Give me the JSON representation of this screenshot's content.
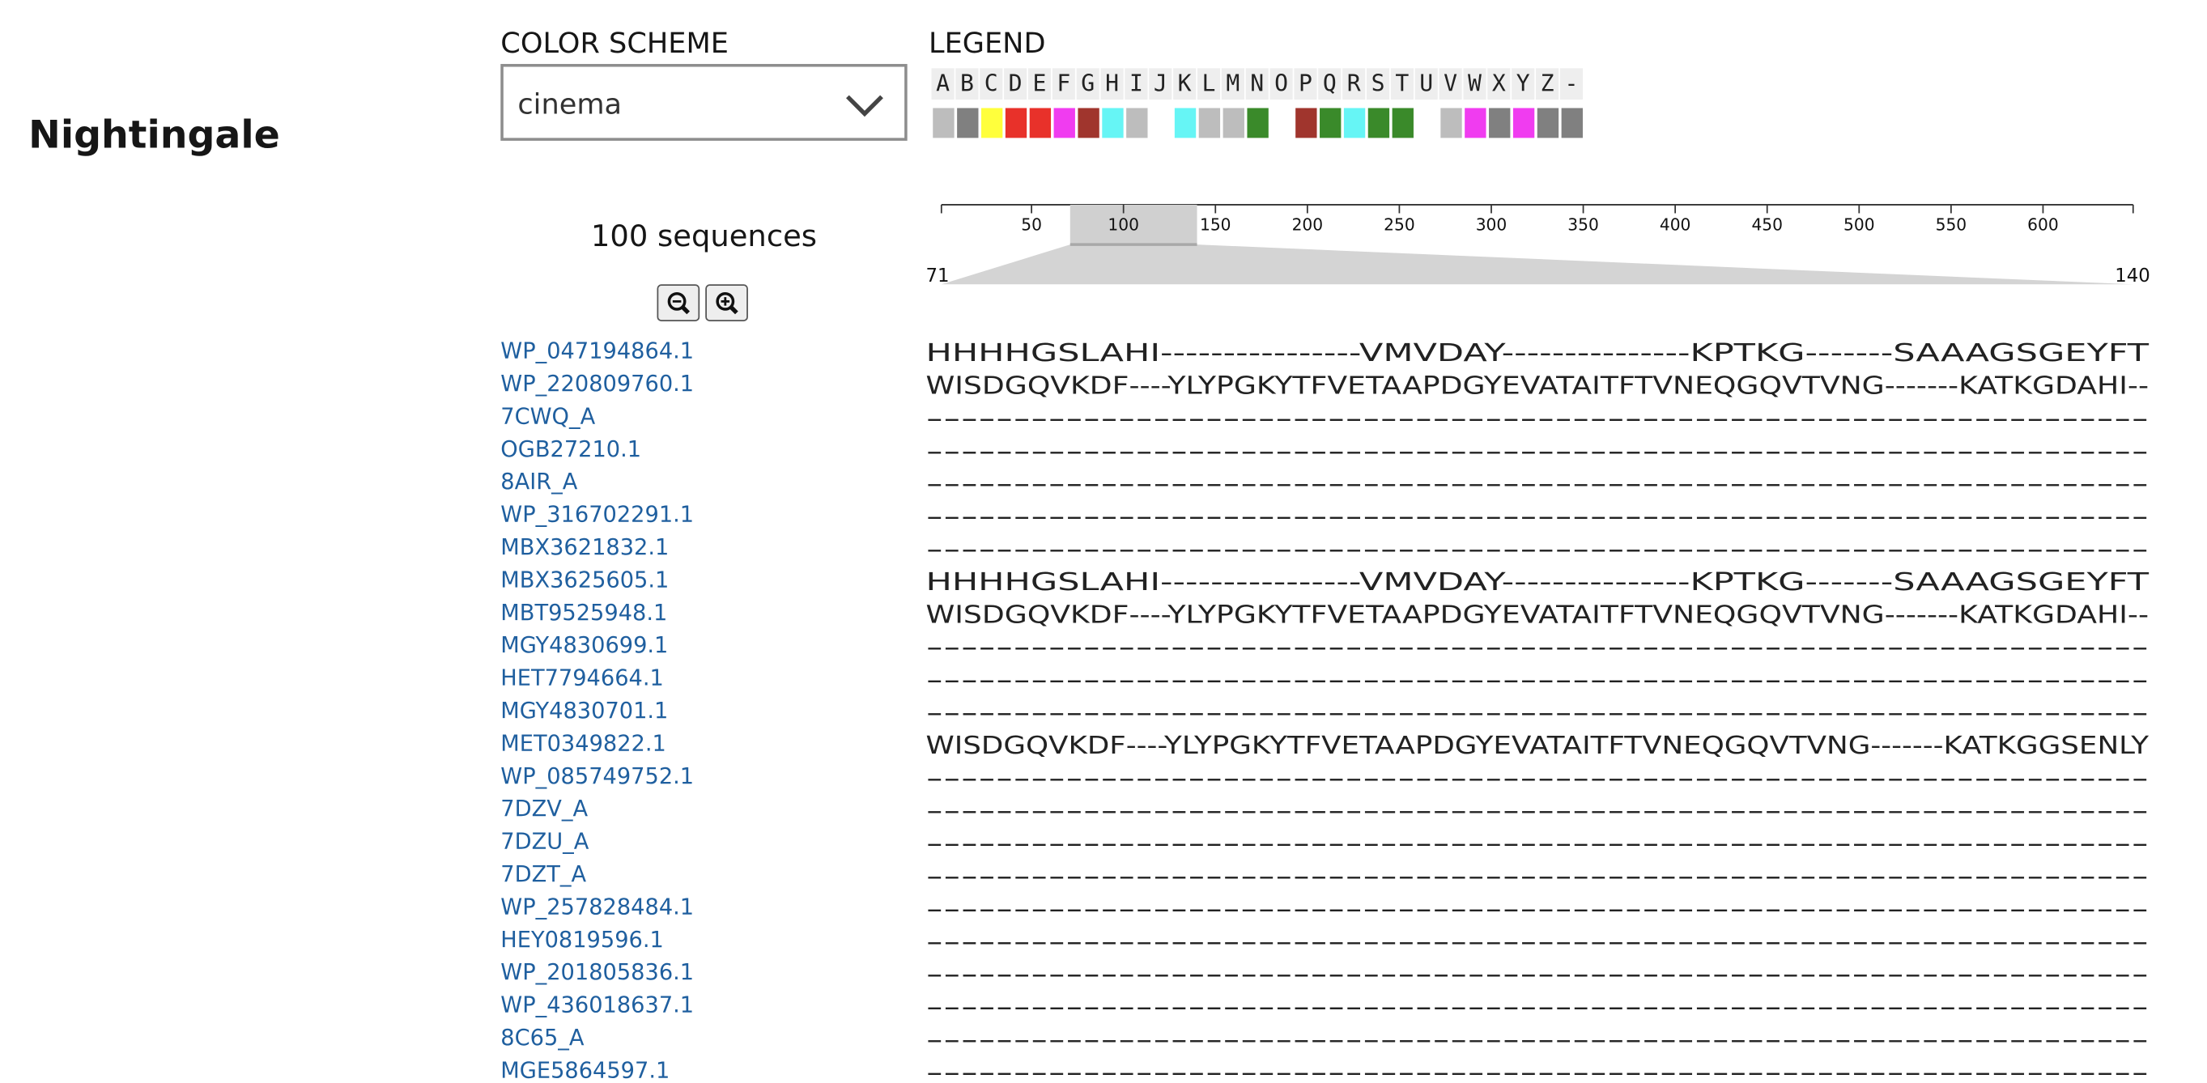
{
  "header": {
    "title": "Nightingale"
  },
  "color_scheme": {
    "label": "COLOR SCHEME",
    "value": "cinema"
  },
  "legend": {
    "label": "LEGEND",
    "items": [
      {
        "letter": "A",
        "color": "#bdbdbd"
      },
      {
        "letter": "B",
        "color": "#808080"
      },
      {
        "letter": "C",
        "color": "#ffff3c"
      },
      {
        "letter": "D",
        "color": "#e8312a"
      },
      {
        "letter": "E",
        "color": "#e8312a"
      },
      {
        "letter": "F",
        "color": "#f03cf0"
      },
      {
        "letter": "G",
        "color": "#a0352d"
      },
      {
        "letter": "H",
        "color": "#66f5f5"
      },
      {
        "letter": "I",
        "color": "#bdbdbd"
      },
      {
        "letter": "J",
        "color": null
      },
      {
        "letter": "K",
        "color": "#66f5f5"
      },
      {
        "letter": "L",
        "color": "#bdbdbd"
      },
      {
        "letter": "M",
        "color": "#bdbdbd"
      },
      {
        "letter": "N",
        "color": "#3a8a2a"
      },
      {
        "letter": "O",
        "color": null
      },
      {
        "letter": "P",
        "color": "#a0352d"
      },
      {
        "letter": "Q",
        "color": "#3a8a2a"
      },
      {
        "letter": "R",
        "color": "#66f5f5"
      },
      {
        "letter": "S",
        "color": "#3a8a2a"
      },
      {
        "letter": "T",
        "color": "#3a8a2a"
      },
      {
        "letter": "U",
        "color": null
      },
      {
        "letter": "V",
        "color": "#bdbdbd"
      },
      {
        "letter": "W",
        "color": "#f03cf0"
      },
      {
        "letter": "X",
        "color": "#808080"
      },
      {
        "letter": "Y",
        "color": "#f03cf0"
      },
      {
        "letter": "Z",
        "color": "#808080"
      },
      {
        "letter": "-",
        "color": "#808080"
      }
    ]
  },
  "sequence_count": "100 sequences",
  "navigation": {
    "xlim": [
      1,
      649
    ],
    "ticks": [
      50,
      100,
      150,
      200,
      250,
      300,
      350,
      400,
      450,
      500,
      550,
      600
    ],
    "range": [
      71,
      140
    ]
  },
  "rows": [
    {
      "id": "WP_047194864.1",
      "sequence": "HHHHGSLAHI----------------VMVDAY---------------KPTKG-------SAAAGSGEYFT"
    },
    {
      "id": "WP_220809760.1",
      "sequence": "WISDGQVKDF----YLYPGKYTFVETAAPDGYEVATAITFTVNEQGQVTVNG-------KATKGDAHI--"
    },
    {
      "id": "7CWQ_A",
      "sequence": "----------------------------------------------------------------------"
    },
    {
      "id": "OGB27210.1",
      "sequence": "----------------------------------------------------------------------"
    },
    {
      "id": "8AIR_A",
      "sequence": "----------------------------------------------------------------------"
    },
    {
      "id": "WP_316702291.1",
      "sequence": "----------------------------------------------------------------------"
    },
    {
      "id": "MBX3621832.1",
      "sequence": "----------------------------------------------------------------------"
    },
    {
      "id": "MBX3625605.1",
      "sequence": "HHHHGSLAHI----------------VMVDAY---------------KPTKG-------SAAAGSGEYFT"
    },
    {
      "id": "MBT9525948.1",
      "sequence": "WISDGQVKDF----YLYPGKYTFVETAAPDGYEVATAITFTVNEQGQVTVNG-------KATKGDAHI--"
    },
    {
      "id": "MGY4830699.1",
      "sequence": "----------------------------------------------------------------------"
    },
    {
      "id": "HET7794664.1",
      "sequence": "----------------------------------------------------------------------"
    },
    {
      "id": "MGY4830701.1",
      "sequence": "----------------------------------------------------------------------"
    },
    {
      "id": "MET0349822.1",
      "sequence": "WISDGQVKDF----YLYPGKYTFVETAAPDGYEVATAITFTVNEQGQVTVNG-------KATKGGSENLY"
    },
    {
      "id": "WP_085749752.1",
      "sequence": "----------------------------------------------------------------------"
    },
    {
      "id": "7DZV_A",
      "sequence": "----------------------------------------------------------------------"
    },
    {
      "id": "7DZU_A",
      "sequence": "----------------------------------------------------------------------"
    },
    {
      "id": "7DZT_A",
      "sequence": "----------------------------------------------------------------------"
    },
    {
      "id": "WP_257828484.1",
      "sequence": "----------------------------------------------------------------------"
    },
    {
      "id": "HEY0819596.1",
      "sequence": "----------------------------------------------------------------------"
    },
    {
      "id": "WP_201805836.1",
      "sequence": "----------------------------------------------------------------------"
    },
    {
      "id": "WP_436018637.1",
      "sequence": "----------------------------------------------------------------------"
    },
    {
      "id": "8C65_A",
      "sequence": "----------------------------------------------------------------------"
    },
    {
      "id": "MGE5864597.1",
      "sequence": "----------------------------------------------------------------------"
    }
  ]
}
